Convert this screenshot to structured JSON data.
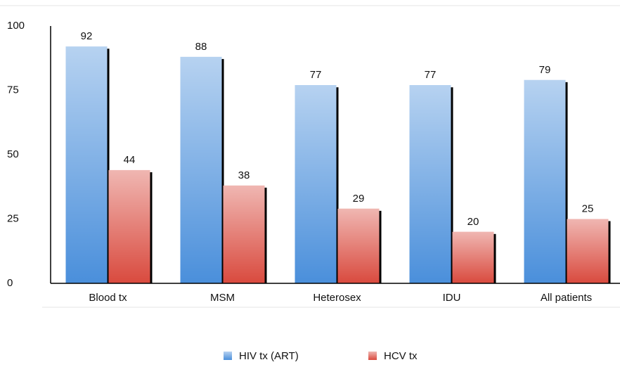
{
  "chart_data": {
    "type": "bar",
    "categories": [
      "Blood tx",
      "MSM",
      "Heterosex",
      "IDU",
      "All patients"
    ],
    "series": [
      {
        "name": "HIV tx (ART)",
        "color": "#4a8fdb",
        "values": [
          92,
          88,
          77,
          77,
          79
        ]
      },
      {
        "name": "HCV tx",
        "color": "#d94a3e",
        "values": [
          44,
          38,
          29,
          20,
          25
        ]
      }
    ],
    "ylim": [
      0,
      100
    ],
    "yticks": [
      0,
      25,
      50,
      75,
      100
    ],
    "grid": false,
    "legend": "bottom"
  }
}
